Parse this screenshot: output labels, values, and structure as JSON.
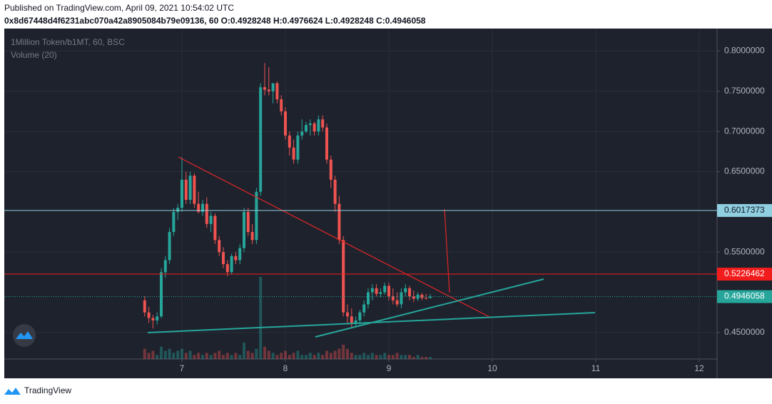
{
  "header": {
    "published": "Published on TradingView.com, April 09, 2021 10:54:02 UTC",
    "ohlc_line": "0x8d67448d4f6231abc070a42a8905084b79e09136, 60  O:0.4928248 H:0.4976624 L:0.4928248 C:0.4946058"
  },
  "footer": {
    "brand": "TradingView"
  },
  "chart_data": {
    "type": "candlestick",
    "title": "1Million Token/b1MT, 60, BSC",
    "volume_label": "Volume (20)",
    "x": [
      6.64,
      6.68,
      6.72,
      6.76,
      6.8,
      6.84,
      6.88,
      6.92,
      6.96,
      7,
      7.04,
      7.08,
      7.12,
      7.16,
      7.2,
      7.24,
      7.28,
      7.32,
      7.36,
      7.4,
      7.44,
      7.48,
      7.52,
      7.56,
      7.6,
      7.64,
      7.68,
      7.72,
      7.76,
      7.8,
      7.84,
      7.88,
      7.92,
      7.96,
      8,
      8.04,
      8.08,
      8.12,
      8.16,
      8.2,
      8.24,
      8.28,
      8.32,
      8.36,
      8.4,
      8.44,
      8.48,
      8.52,
      8.56,
      8.6,
      8.64,
      8.68,
      8.72,
      8.76,
      8.8,
      8.84,
      8.88,
      8.92,
      8.96,
      9,
      9.04,
      9.08,
      9.12,
      9.16,
      9.2,
      9.24,
      9.28,
      9.32,
      9.36,
      9.4
    ],
    "open": [
      0.49,
      0.475,
      0.468,
      0.465,
      0.47,
      0.525,
      0.54,
      0.575,
      0.6,
      0.605,
      0.64,
      0.615,
      0.645,
      0.61,
      0.6,
      0.61,
      0.585,
      0.595,
      0.565,
      0.55,
      0.535,
      0.525,
      0.545,
      0.54,
      0.555,
      0.6,
      0.575,
      0.565,
      0.625,
      0.755,
      0.752,
      0.75,
      0.76,
      0.74,
      0.725,
      0.695,
      0.68,
      0.665,
      0.695,
      0.7,
      0.708,
      0.71,
      0.7,
      0.715,
      0.705,
      0.665,
      0.64,
      0.61,
      0.565,
      0.475,
      0.47,
      0.462,
      0.465,
      0.475,
      0.485,
      0.5,
      0.505,
      0.498,
      0.5,
      0.508,
      0.495,
      0.49,
      0.485,
      0.5,
      0.505,
      0.495,
      0.492,
      0.497,
      0.493,
      0.4928248
    ],
    "high": [
      0.495,
      0.482,
      0.472,
      0.475,
      0.53,
      0.545,
      0.58,
      0.605,
      0.61,
      0.668,
      0.65,
      0.65,
      0.648,
      0.625,
      0.615,
      0.618,
      0.6,
      0.598,
      0.57,
      0.556,
      0.54,
      0.548,
      0.55,
      0.56,
      0.605,
      0.605,
      0.585,
      0.63,
      0.76,
      0.785,
      0.78,
      0.76,
      0.762,
      0.745,
      0.73,
      0.7,
      0.69,
      0.7,
      0.715,
      0.712,
      0.715,
      0.712,
      0.72,
      0.72,
      0.71,
      0.67,
      0.645,
      0.62,
      0.57,
      0.485,
      0.48,
      0.47,
      0.478,
      0.49,
      0.505,
      0.51,
      0.51,
      0.505,
      0.512,
      0.512,
      0.505,
      0.5,
      0.505,
      0.51,
      0.508,
      0.502,
      0.5,
      0.499,
      0.498,
      0.4976624
    ],
    "low": [
      0.47,
      0.462,
      0.455,
      0.46,
      0.468,
      0.518,
      0.535,
      0.57,
      0.59,
      0.6,
      0.61,
      0.61,
      0.605,
      0.598,
      0.595,
      0.58,
      0.575,
      0.56,
      0.545,
      0.53,
      0.52,
      0.522,
      0.535,
      0.535,
      0.55,
      0.57,
      0.56,
      0.56,
      0.62,
      0.745,
      0.745,
      0.735,
      0.735,
      0.72,
      0.69,
      0.67,
      0.66,
      0.66,
      0.69,
      0.698,
      0.695,
      0.695,
      0.695,
      0.7,
      0.66,
      0.63,
      0.6,
      0.56,
      0.47,
      0.46,
      0.455,
      0.458,
      0.46,
      0.47,
      0.48,
      0.49,
      0.495,
      0.494,
      0.497,
      0.49,
      0.485,
      0.482,
      0.48,
      0.495,
      0.49,
      0.488,
      0.489,
      0.49,
      0.491,
      0.4928248
    ],
    "close": [
      0.475,
      0.468,
      0.465,
      0.47,
      0.525,
      0.54,
      0.575,
      0.6,
      0.605,
      0.64,
      0.615,
      0.645,
      0.61,
      0.6,
      0.61,
      0.585,
      0.595,
      0.565,
      0.55,
      0.535,
      0.525,
      0.545,
      0.54,
      0.555,
      0.6,
      0.575,
      0.565,
      0.625,
      0.755,
      0.752,
      0.75,
      0.76,
      0.74,
      0.725,
      0.695,
      0.68,
      0.665,
      0.695,
      0.7,
      0.708,
      0.71,
      0.7,
      0.715,
      0.705,
      0.665,
      0.64,
      0.61,
      0.565,
      0.475,
      0.47,
      0.462,
      0.465,
      0.475,
      0.485,
      0.5,
      0.505,
      0.498,
      0.5,
      0.508,
      0.495,
      0.49,
      0.485,
      0.5,
      0.505,
      0.495,
      0.492,
      0.497,
      0.493,
      0.4928248,
      0.4946058
    ],
    "volume": [
      5,
      3,
      4,
      2,
      6,
      4,
      5,
      3,
      4,
      5,
      3,
      4,
      2,
      3,
      2,
      3,
      2,
      3,
      4,
      2,
      3,
      2,
      3,
      2,
      8,
      4,
      3,
      5,
      40,
      6,
      4,
      3,
      2,
      3,
      4,
      2,
      3,
      4,
      2,
      2,
      3,
      2,
      3,
      2,
      4,
      3,
      4,
      5,
      7,
      5,
      3,
      2,
      2,
      3,
      2,
      3,
      2,
      2,
      3,
      2,
      2,
      3,
      2,
      2,
      2,
      1,
      2,
      1,
      1,
      1
    ],
    "up_color": "#26a69a",
    "down_color": "#ef5350",
    "xlim": [
      5.283,
      12.172
    ],
    "xticks": [
      7,
      8,
      9,
      10,
      11,
      12
    ],
    "ylim": [
      0.417,
      0.828
    ],
    "yticks": [
      {
        "value": 0.45,
        "label": "0.4500000"
      },
      {
        "value": 0.55,
        "label": "0.5500000"
      },
      {
        "value": 0.65,
        "label": "0.6500000"
      },
      {
        "value": 0.7,
        "label": "0.7000000"
      },
      {
        "value": 0.75,
        "label": "0.7500000"
      },
      {
        "value": 0.8,
        "label": "0.8000000"
      }
    ],
    "grid": true,
    "price_lines": [
      {
        "value": 0.6017373,
        "color": "#8fcfe0",
        "text_color": "#131722"
      },
      {
        "value": 0.5226462,
        "color": "#f21c1c",
        "text_color": "#ffffff"
      },
      {
        "value": 0.4946058,
        "color": "#26a69a",
        "text_color": "#ffffff"
      }
    ]
  }
}
